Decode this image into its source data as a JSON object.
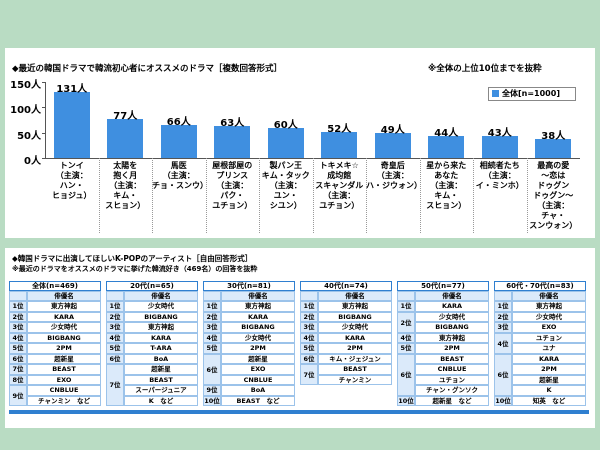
{
  "chart_data": {
    "type": "bar",
    "title": "◆最近の韓国ドラマで韓流初心者にオススメのドラマ［複数回答形式］",
    "note": "※全体の上位10位までを抜粋",
    "categories": [
      "トンイ\n（主演：\nハン・\nヒョジュ）",
      "太陽を\n抱く月\n（主演：\nキム・\nスヒョン）",
      "馬医\n（主演：\nチョ・スンウ）",
      "屋根部屋の\nプリンス\n（主演：\nパク・\nユチョン）",
      "製パン王\nキム・タック\n（主演：\nユン・\nシユン）",
      "トキメキ☆\n成均館\nスキャンダル\n（主演：\nユチョン）",
      "奇皇后\n（主演：\nハ・ジウォン）",
      "星から来た\nあなた\n（主演：\nキム・\nスヒョン）",
      "相続者たち\n（主演：\nイ・ミンホ）",
      "最高の愛\n～恋は\nドゥグン\nドゥグン～\n（主演：\nチャ・\nスンウォン）"
    ],
    "series": [
      {
        "name": "全体[n=1000]",
        "color": "#3f8fe0",
        "values": [
          131,
          77,
          66,
          63,
          60,
          52,
          49,
          44,
          43,
          38
        ],
        "value_labels": [
          "131人",
          "77人",
          "66人",
          "63人",
          "60人",
          "52人",
          "49人",
          "44人",
          "43人",
          "38人"
        ]
      }
    ],
    "ylim": [
      0,
      150
    ],
    "yticks": [
      {
        "value": 0,
        "label": "0人"
      },
      {
        "value": 50,
        "label": "50人"
      },
      {
        "value": 100,
        "label": "100人"
      },
      {
        "value": 150,
        "label": "150人"
      }
    ],
    "legend": "top-right"
  },
  "section2": {
    "title": "◆韓国ドラマに出演してほしいK-POPのアーティスト［自由回答形式］",
    "subtitle": "※最近のドラマをオススメのドラマに挙げた韓流好き（469名）の回答を抜粋"
  },
  "tables": [
    {
      "header": "全体(n=469)",
      "column_header": "俳優名",
      "groups": [
        {
          "rank": "1位",
          "names": [
            "東方神起"
          ]
        },
        {
          "rank": "2位",
          "names": [
            "KARA"
          ]
        },
        {
          "rank": "3位",
          "names": [
            "少女時代"
          ]
        },
        {
          "rank": "4位",
          "names": [
            "BIGBANG"
          ]
        },
        {
          "rank": "5位",
          "names": [
            "2PM"
          ]
        },
        {
          "rank": "6位",
          "names": [
            "超新星"
          ]
        },
        {
          "rank": "7位",
          "names": [
            "BEAST"
          ]
        },
        {
          "rank": "8位",
          "names": [
            "EXO"
          ]
        },
        {
          "rank": "9位",
          "names": [
            "CNBLUE",
            "チャンミン　など"
          ]
        }
      ]
    },
    {
      "header": "20代(n=65)",
      "column_header": "俳優名",
      "groups": [
        {
          "rank": "1位",
          "names": [
            "少女時代"
          ]
        },
        {
          "rank": "2位",
          "names": [
            "BIGBANG"
          ]
        },
        {
          "rank": "3位",
          "names": [
            "東方神起"
          ]
        },
        {
          "rank": "4位",
          "names": [
            "KARA"
          ]
        },
        {
          "rank": "5位",
          "names": [
            "T-ARA"
          ]
        },
        {
          "rank": "6位",
          "names": [
            "BoA"
          ]
        },
        {
          "rank": "7位",
          "names": [
            "超新星",
            "BEAST",
            "スーパージュニア",
            "K　など"
          ]
        }
      ]
    },
    {
      "header": "30代(n=81)",
      "column_header": "俳優名",
      "groups": [
        {
          "rank": "1位",
          "names": [
            "東方神起"
          ]
        },
        {
          "rank": "2位",
          "names": [
            "KARA"
          ]
        },
        {
          "rank": "3位",
          "names": [
            "BIGBANG"
          ]
        },
        {
          "rank": "4位",
          "names": [
            "少女時代"
          ]
        },
        {
          "rank": "5位",
          "names": [
            "2PM"
          ]
        },
        {
          "rank": "6位",
          "names": [
            "超新星",
            "EXO",
            "CNBLUE"
          ]
        },
        {
          "rank": "9位",
          "names": [
            "BoA"
          ]
        },
        {
          "rank": "10位",
          "names": [
            "BEAST　など"
          ]
        }
      ]
    },
    {
      "header": "40代(n=74)",
      "column_header": "俳優名",
      "groups": [
        {
          "rank": "1位",
          "names": [
            "東方神起"
          ]
        },
        {
          "rank": "2位",
          "names": [
            "BIGBANG"
          ]
        },
        {
          "rank": "3位",
          "names": [
            "少女時代"
          ]
        },
        {
          "rank": "4位",
          "names": [
            "KARA"
          ]
        },
        {
          "rank": "5位",
          "names": [
            "2PM"
          ]
        },
        {
          "rank": "6位",
          "names": [
            "キム・ジェジュン"
          ]
        },
        {
          "rank": "7位",
          "names": [
            "BEAST",
            "チャンミン"
          ]
        }
      ]
    },
    {
      "header": "50代(n=77)",
      "column_header": "俳優名",
      "groups": [
        {
          "rank": "1位",
          "names": [
            "KARA"
          ]
        },
        {
          "rank": "2位",
          "names": [
            "少女時代",
            "BIGBANG"
          ]
        },
        {
          "rank": "4位",
          "names": [
            "東方神起"
          ]
        },
        {
          "rank": "5位",
          "names": [
            "2PM"
          ]
        },
        {
          "rank": "6位",
          "names": [
            "BEAST",
            "CNBLUE",
            "ユチョン",
            "チャン・グンソク"
          ]
        },
        {
          "rank": "10位",
          "names": [
            "超新星　など"
          ]
        }
      ]
    },
    {
      "header": "60代・70代(n=83)",
      "column_header": "俳優名",
      "groups": [
        {
          "rank": "1位",
          "names": [
            "東方神起"
          ]
        },
        {
          "rank": "2位",
          "names": [
            "少女時代"
          ]
        },
        {
          "rank": "3位",
          "names": [
            "EXO"
          ]
        },
        {
          "rank": "4位",
          "names": [
            "ユチョン",
            "ユナ"
          ]
        },
        {
          "rank": "6位",
          "names": [
            "KARA",
            "2PM",
            "超新星",
            "K"
          ]
        },
        {
          "rank": "10位",
          "names": [
            "知英　など"
          ]
        }
      ]
    }
  ]
}
